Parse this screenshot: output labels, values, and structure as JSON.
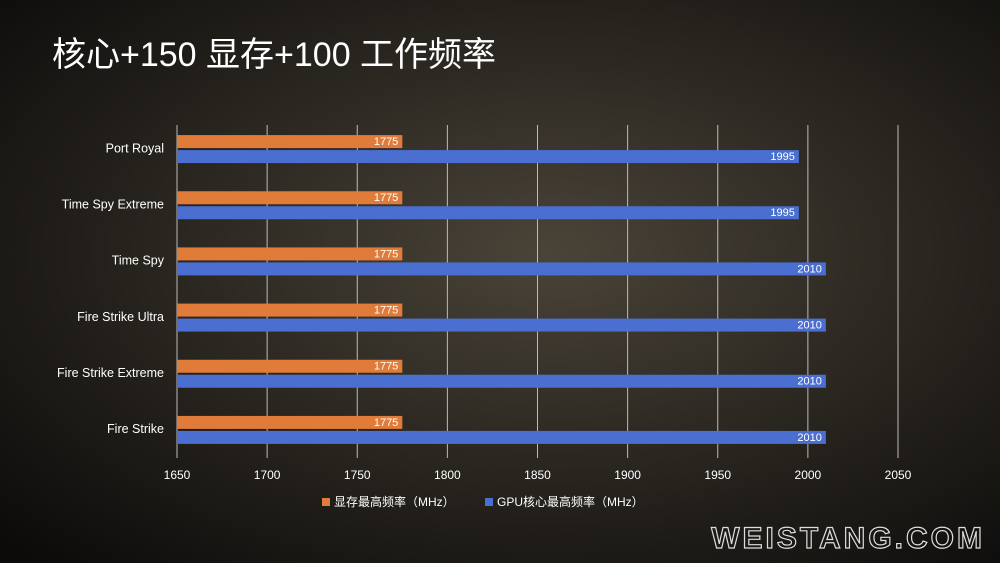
{
  "chart_data": {
    "type": "barh",
    "title": "核心+150 显存+100 工作频率",
    "categories": [
      "Port Royal",
      "Time Spy Extreme",
      "Time Spy",
      "Fire Strike Ultra",
      "Fire Strike Extreme",
      "Fire Strike"
    ],
    "series": [
      {
        "name": "显存最高频率（MHz）",
        "color": "#e07b39",
        "values": [
          1775,
          1775,
          1775,
          1775,
          1775,
          1775
        ]
      },
      {
        "name": "GPU核心最高频率（MHz）",
        "color": "#4a6fd0",
        "values": [
          1995,
          1995,
          2010,
          2010,
          2010,
          2010
        ]
      }
    ],
    "xlim": [
      1650,
      2050
    ],
    "xticks": [
      1650,
      1700,
      1750,
      1800,
      1850,
      1900,
      1950,
      2000,
      2050
    ],
    "grid": true,
    "legend": "bottom",
    "watermark": "WEISTANG.COM"
  }
}
